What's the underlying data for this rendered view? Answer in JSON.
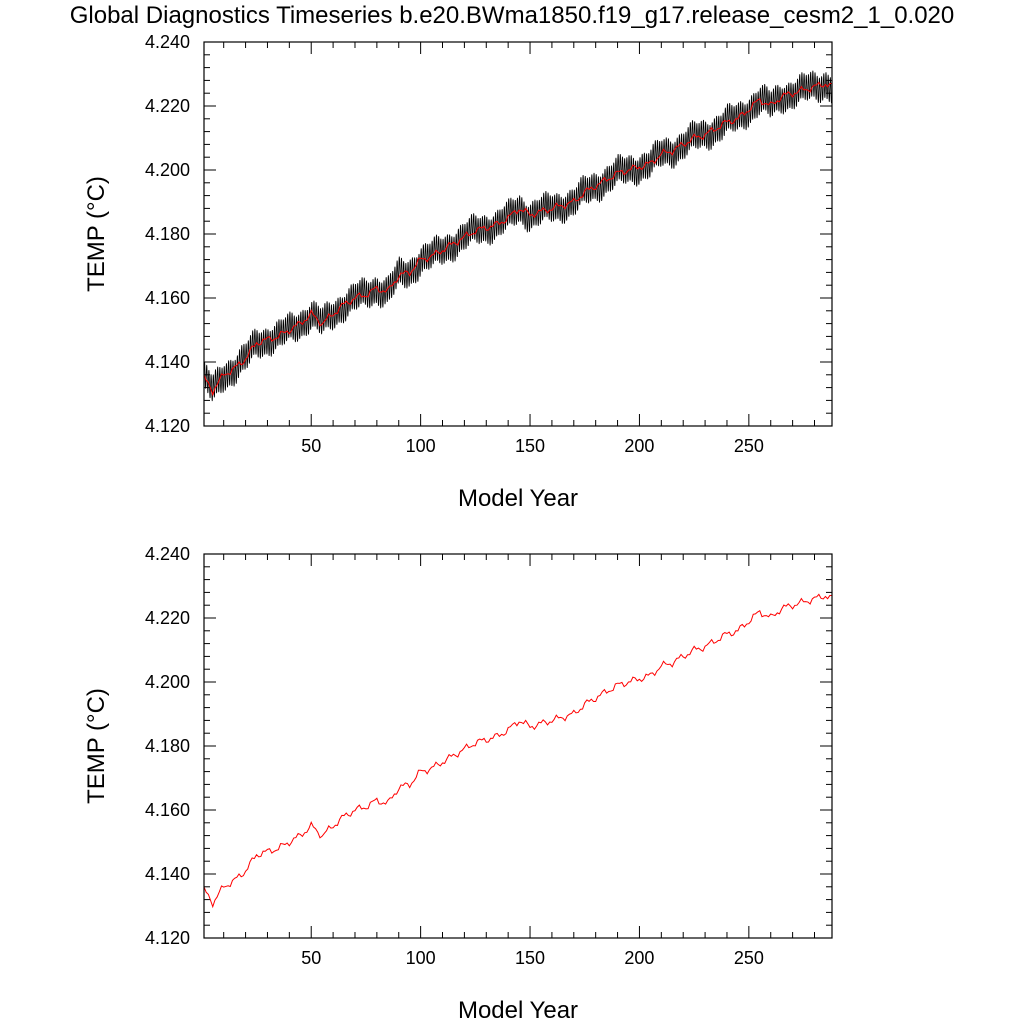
{
  "title": "Global Diagnostics Timeseries b.e20.BWma1850.f19_g17.release_cesm2_1_0.020",
  "colors": {
    "raw": "#000000",
    "smooth": "#ff0000",
    "axis": "#000000"
  },
  "chart_data": [
    {
      "type": "line",
      "xlabel": "Model Year",
      "ylabel": "TEMP (°C)",
      "xlim": [
        1,
        288
      ],
      "ylim": [
        4.12,
        4.24
      ],
      "xticks": [
        50,
        100,
        150,
        200,
        250
      ],
      "yticks": [
        "4.120",
        "4.140",
        "4.160",
        "4.180",
        "4.200",
        "4.220",
        "4.240"
      ],
      "grid": false,
      "series": [
        {
          "kind": "monthly",
          "color": "#000000",
          "amplitude": 0.004,
          "x": [
            1,
            5,
            10,
            15,
            20,
            25,
            30,
            35,
            40,
            45,
            50,
            55,
            60,
            65,
            70,
            75,
            80,
            85,
            90,
            95,
            100,
            105,
            110,
            115,
            120,
            125,
            130,
            135,
            140,
            145,
            150,
            155,
            160,
            165,
            170,
            175,
            180,
            185,
            190,
            195,
            200,
            205,
            210,
            215,
            220,
            225,
            230,
            235,
            240,
            245,
            250,
            255,
            260,
            265,
            270,
            275,
            280,
            285,
            288
          ],
          "values": [
            4.135,
            4.131,
            4.136,
            4.138,
            4.141,
            4.146,
            4.147,
            4.148,
            4.15,
            4.152,
            4.155,
            4.152,
            4.155,
            4.158,
            4.16,
            4.161,
            4.163,
            4.162,
            4.167,
            4.168,
            4.172,
            4.173,
            4.175,
            4.177,
            4.179,
            4.181,
            4.182,
            4.183,
            4.185,
            4.188,
            4.186,
            4.187,
            4.188,
            4.189,
            4.19,
            4.193,
            4.195,
            4.197,
            4.199,
            4.2,
            4.201,
            4.202,
            4.205,
            4.206,
            4.208,
            4.21,
            4.211,
            4.213,
            4.215,
            4.216,
            4.219,
            4.222,
            4.22,
            4.223,
            4.224,
            4.225,
            4.226,
            4.227,
            4.226
          ]
        },
        {
          "kind": "annual",
          "color": "#ff0000",
          "x": [
            1,
            5,
            10,
            15,
            20,
            25,
            30,
            35,
            40,
            45,
            50,
            55,
            60,
            65,
            70,
            75,
            80,
            85,
            90,
            95,
            100,
            105,
            110,
            115,
            120,
            125,
            130,
            135,
            140,
            145,
            150,
            155,
            160,
            165,
            170,
            175,
            180,
            185,
            190,
            195,
            200,
            205,
            210,
            215,
            220,
            225,
            230,
            235,
            240,
            245,
            250,
            255,
            260,
            265,
            270,
            275,
            280,
            285,
            288
          ],
          "values": [
            4.135,
            4.131,
            4.136,
            4.138,
            4.141,
            4.146,
            4.147,
            4.148,
            4.15,
            4.152,
            4.155,
            4.152,
            4.155,
            4.158,
            4.16,
            4.161,
            4.163,
            4.162,
            4.167,
            4.168,
            4.172,
            4.173,
            4.175,
            4.177,
            4.179,
            4.181,
            4.182,
            4.183,
            4.185,
            4.188,
            4.186,
            4.187,
            4.188,
            4.189,
            4.19,
            4.193,
            4.195,
            4.197,
            4.199,
            4.2,
            4.201,
            4.202,
            4.205,
            4.206,
            4.208,
            4.21,
            4.211,
            4.213,
            4.215,
            4.216,
            4.219,
            4.222,
            4.22,
            4.223,
            4.224,
            4.225,
            4.226,
            4.227,
            4.226
          ]
        }
      ]
    },
    {
      "type": "line",
      "xlabel": "Model Year",
      "ylabel": "TEMP (°C)",
      "xlim": [
        1,
        288
      ],
      "ylim": [
        4.12,
        4.24
      ],
      "xticks": [
        50,
        100,
        150,
        200,
        250
      ],
      "yticks": [
        "4.120",
        "4.140",
        "4.160",
        "4.180",
        "4.200",
        "4.220",
        "4.240"
      ],
      "grid": false,
      "series": [
        {
          "kind": "annual",
          "color": "#ff0000",
          "x": [
            1,
            5,
            10,
            15,
            20,
            25,
            30,
            35,
            40,
            45,
            50,
            55,
            60,
            65,
            70,
            75,
            80,
            85,
            90,
            95,
            100,
            105,
            110,
            115,
            120,
            125,
            130,
            135,
            140,
            145,
            150,
            155,
            160,
            165,
            170,
            175,
            180,
            185,
            190,
            195,
            200,
            205,
            210,
            215,
            220,
            225,
            230,
            235,
            240,
            245,
            250,
            255,
            260,
            265,
            270,
            275,
            280,
            285,
            288
          ],
          "values": [
            4.135,
            4.131,
            4.136,
            4.138,
            4.141,
            4.146,
            4.147,
            4.148,
            4.15,
            4.152,
            4.155,
            4.152,
            4.155,
            4.158,
            4.16,
            4.161,
            4.163,
            4.162,
            4.167,
            4.168,
            4.172,
            4.173,
            4.175,
            4.177,
            4.179,
            4.181,
            4.182,
            4.183,
            4.185,
            4.188,
            4.186,
            4.187,
            4.188,
            4.189,
            4.19,
            4.193,
            4.195,
            4.197,
            4.199,
            4.2,
            4.201,
            4.202,
            4.205,
            4.206,
            4.208,
            4.21,
            4.211,
            4.213,
            4.215,
            4.216,
            4.219,
            4.222,
            4.22,
            4.223,
            4.224,
            4.225,
            4.226,
            4.227,
            4.226
          ]
        }
      ]
    }
  ]
}
